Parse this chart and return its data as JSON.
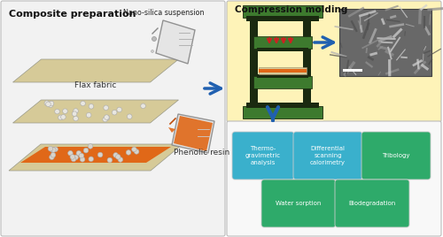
{
  "bg_color": "#ffffff",
  "left_panel_bg": "#f2f2f2",
  "right_top_panel_bg": "#fef3b8",
  "right_bot_panel_bg": "#f8f8f8",
  "title_left": "Composite preparation",
  "title_right_top": "Compression molding",
  "label_nano": "Nano-silica suspension",
  "label_flax": "Flax fabric",
  "label_phenolic": "Phenolic resin",
  "boxes": [
    {
      "label": "Thermo-\ngravimetric\nanalysis",
      "color": "#3ab0cc",
      "text_color": "#ffffff"
    },
    {
      "label": "Differential\nscanning\ncalorimetry",
      "color": "#3ab0cc",
      "text_color": "#ffffff"
    },
    {
      "label": "Tribology",
      "color": "#2eaa6a",
      "text_color": "#ffffff"
    },
    {
      "label": "Water sorption",
      "color": "#2eaa6a",
      "text_color": "#ffffff"
    },
    {
      "label": "Biodegradation",
      "color": "#2eaa6a",
      "text_color": "#ffffff"
    }
  ],
  "arrow_color": "#2060b0",
  "fabric_color": "#d6ca98",
  "resin_color": "#e06818",
  "bead_color": "#e8e6e0",
  "press_green": "#3d7a2e",
  "press_dark": "#1a2a10",
  "press_red": "#cc2222",
  "sem_base": "#787878"
}
